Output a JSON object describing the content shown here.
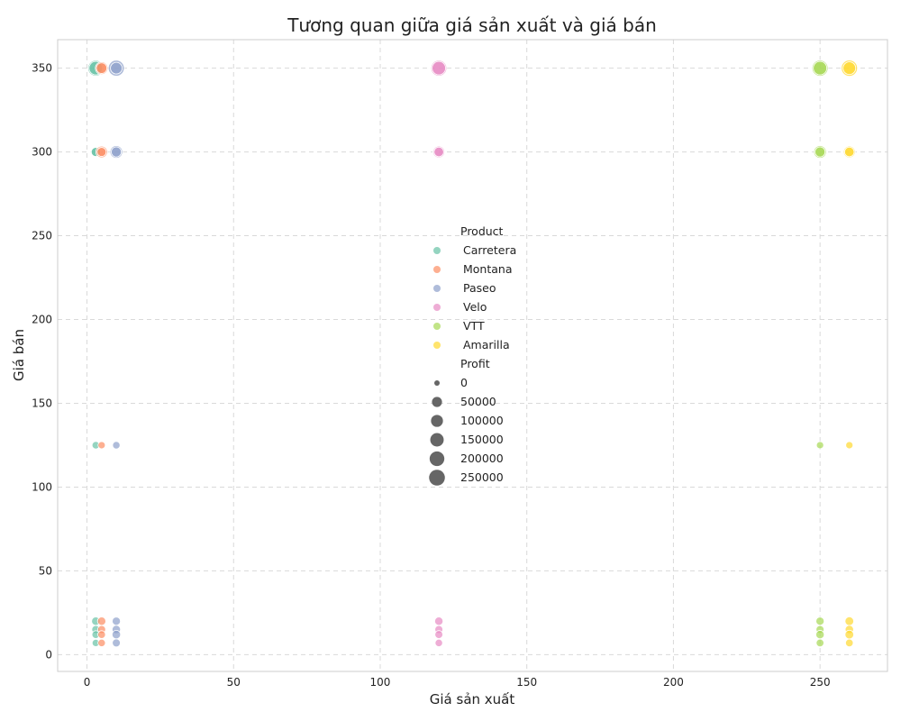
{
  "chart_data": {
    "type": "scatter",
    "title": "Tương quan giữa giá sản xuất và giá bán",
    "xlabel": "Giá sản xuất",
    "ylabel": "Giá bán",
    "xlim": [
      -10,
      273
    ],
    "ylim": [
      -10,
      367
    ],
    "xticks": [
      0,
      50,
      100,
      150,
      200,
      250
    ],
    "yticks": [
      0,
      50,
      100,
      150,
      200,
      250,
      300,
      350
    ],
    "grid": true,
    "legend_position": "center",
    "legend_hue_title": "Product",
    "legend_size_title": "Profit",
    "size_legend": [
      0,
      50000,
      100000,
      150000,
      200000,
      250000
    ],
    "series": [
      {
        "name": "Carretera",
        "color": "#66c2a5",
        "points": [
          {
            "x": 3,
            "y": 350,
            "profit": 250000
          },
          {
            "x": 3,
            "y": 350,
            "profit": 150000
          },
          {
            "x": 3,
            "y": 300,
            "profit": 50000
          },
          {
            "x": 3,
            "y": 300,
            "profit": 30000
          },
          {
            "x": 3,
            "y": 125,
            "profit": 10000
          },
          {
            "x": 3,
            "y": 20,
            "profit": 20000
          },
          {
            "x": 3,
            "y": 15,
            "profit": 15000
          },
          {
            "x": 3,
            "y": 12,
            "profit": 12000
          },
          {
            "x": 3,
            "y": 7,
            "profit": 8000
          }
        ]
      },
      {
        "name": "Montana",
        "color": "#fc8d62",
        "points": [
          {
            "x": 5,
            "y": 350,
            "profit": 120000
          },
          {
            "x": 5,
            "y": 350,
            "profit": 60000
          },
          {
            "x": 5,
            "y": 300,
            "profit": 90000
          },
          {
            "x": 5,
            "y": 300,
            "profit": 30000
          },
          {
            "x": 5,
            "y": 125,
            "profit": 8000
          },
          {
            "x": 5,
            "y": 20,
            "profit": 20000
          },
          {
            "x": 5,
            "y": 15,
            "profit": 15000
          },
          {
            "x": 5,
            "y": 12,
            "profit": 12000
          },
          {
            "x": 5,
            "y": 7,
            "profit": 10000
          }
        ]
      },
      {
        "name": "Paseo",
        "color": "#8da0cb",
        "points": [
          {
            "x": 10,
            "y": 350,
            "profit": 260000
          },
          {
            "x": 10,
            "y": 350,
            "profit": 90000
          },
          {
            "x": 10,
            "y": 300,
            "profit": 120000
          },
          {
            "x": 10,
            "y": 300,
            "profit": 50000
          },
          {
            "x": 10,
            "y": 125,
            "profit": 10000
          },
          {
            "x": 10,
            "y": 20,
            "profit": 18000
          },
          {
            "x": 10,
            "y": 15,
            "profit": 20000
          },
          {
            "x": 10,
            "y": 12,
            "profit": 22000
          },
          {
            "x": 10,
            "y": 7,
            "profit": 15000
          }
        ]
      },
      {
        "name": "Velo",
        "color": "#e78ac3",
        "points": [
          {
            "x": 120,
            "y": 350,
            "profit": 250000
          },
          {
            "x": 120,
            "y": 350,
            "profit": 150000
          },
          {
            "x": 120,
            "y": 300,
            "profit": 90000
          },
          {
            "x": 120,
            "y": 300,
            "profit": 40000
          },
          {
            "x": 120,
            "y": 20,
            "profit": 20000
          },
          {
            "x": 120,
            "y": 15,
            "profit": 15000
          },
          {
            "x": 120,
            "y": 12,
            "profit": 15000
          },
          {
            "x": 120,
            "y": 7,
            "profit": 10000
          }
        ]
      },
      {
        "name": "VTT",
        "color": "#a6d854",
        "points": [
          {
            "x": 250,
            "y": 350,
            "profit": 260000
          },
          {
            "x": 250,
            "y": 350,
            "profit": 150000
          },
          {
            "x": 250,
            "y": 300,
            "profit": 120000
          },
          {
            "x": 250,
            "y": 300,
            "profit": 50000
          },
          {
            "x": 250,
            "y": 125,
            "profit": 8000
          },
          {
            "x": 250,
            "y": 20,
            "profit": 18000
          },
          {
            "x": 250,
            "y": 15,
            "profit": 15000
          },
          {
            "x": 250,
            "y": 12,
            "profit": 20000
          },
          {
            "x": 250,
            "y": 7,
            "profit": 12000
          }
        ]
      },
      {
        "name": "Amarilla",
        "color": "#ffd92f",
        "points": [
          {
            "x": 260,
            "y": 350,
            "profit": 270000
          },
          {
            "x": 260,
            "y": 350,
            "profit": 120000
          },
          {
            "x": 260,
            "y": 300,
            "profit": 90000
          },
          {
            "x": 260,
            "y": 300,
            "profit": 40000
          },
          {
            "x": 260,
            "y": 125,
            "profit": 8000
          },
          {
            "x": 260,
            "y": 20,
            "profit": 25000
          },
          {
            "x": 260,
            "y": 15,
            "profit": 20000
          },
          {
            "x": 260,
            "y": 12,
            "profit": 25000
          },
          {
            "x": 260,
            "y": 7,
            "profit": 12000
          }
        ]
      }
    ]
  }
}
